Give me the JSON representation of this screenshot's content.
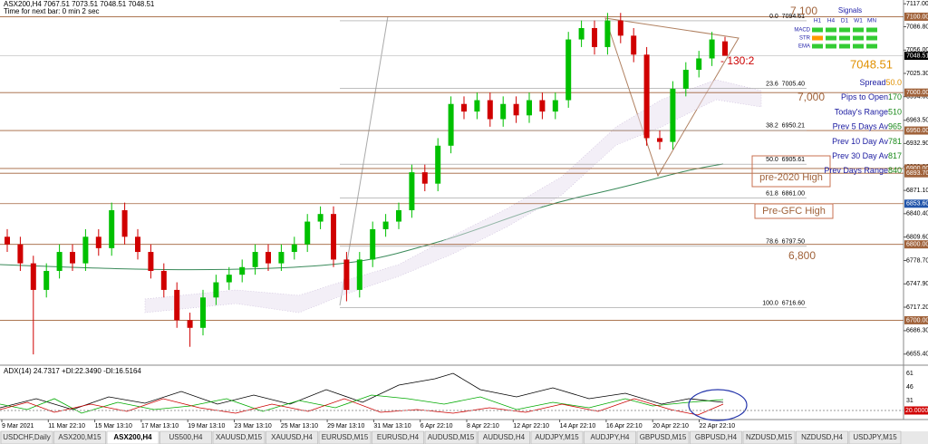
{
  "chart_data": {
    "type": "candlestick",
    "header": "ASX200,H4  7067.51 7073.51 7048.51 7048.51",
    "subheader": "Time for next bar: 0 min 2 sec",
    "ylim": [
      6642,
      7122
    ],
    "yticks": [
      {
        "value": 7117,
        "label": "7117.00"
      },
      {
        "value": 7086.8,
        "label": "7086.80"
      },
      {
        "value": 7056,
        "label": "7056.00"
      },
      {
        "value": 7025.3,
        "label": "7025.30"
      },
      {
        "value": 6994.6,
        "label": "6994.60"
      },
      {
        "value": 6963.5,
        "label": "6963.50"
      },
      {
        "value": 6932.9,
        "label": "6932.90"
      },
      {
        "value": 6902.2,
        "label": "6902.20"
      },
      {
        "value": 6871.1,
        "label": "6871.10"
      },
      {
        "value": 6840.4,
        "label": "6840.40"
      },
      {
        "value": 6809.6,
        "label": "6809.60"
      },
      {
        "value": 6778.7,
        "label": "6778.70"
      },
      {
        "value": 6747.9,
        "label": "6747.90"
      },
      {
        "value": 6717.2,
        "label": "6717.20"
      },
      {
        "value": 6686.3,
        "label": "6686.30"
      },
      {
        "value": 6655.4,
        "label": "6655.40"
      }
    ],
    "open": [
      6810,
      6800,
      6775,
      6740,
      6765,
      6790,
      6775,
      6810,
      6795,
      6845,
      6810,
      6790,
      6765,
      6740,
      6700,
      6690,
      6730,
      6750,
      6760,
      6770,
      6790,
      6775,
      6790,
      6800,
      6830,
      6840,
      6780,
      6740,
      6780,
      6820,
      6830,
      6845,
      6895,
      6880,
      6930,
      6985,
      6975,
      6990,
      6965,
      6985,
      6970,
      6990,
      6975,
      6990,
      7070,
      7085,
      7060,
      7095,
      7075,
      7050,
      6940,
      6935,
      7005,
      7030,
      7045,
      7067.51
    ],
    "high": [
      6820,
      6810,
      6785,
      6775,
      6800,
      6800,
      6820,
      6820,
      6855,
      6855,
      6820,
      6800,
      6775,
      6750,
      6710,
      6740,
      6760,
      6770,
      6780,
      6800,
      6800,
      6800,
      6810,
      6840,
      6850,
      6850,
      6790,
      6790,
      6830,
      6840,
      6855,
      6905,
      6905,
      6940,
      6995,
      6995,
      7000,
      7000,
      6995,
      6995,
      7000,
      7000,
      7000,
      7080,
      7095,
      7095,
      7105,
      7105,
      7085,
      7060,
      6950,
      7015,
      7040,
      7055,
      7080,
      7073.51
    ],
    "low": [
      6790,
      6765,
      6655,
      6730,
      6755,
      6765,
      6765,
      6785,
      6785,
      6800,
      6780,
      6755,
      6730,
      6690,
      6665,
      6680,
      6720,
      6740,
      6750,
      6760,
      6765,
      6765,
      6780,
      6790,
      6820,
      6770,
      6725,
      6730,
      6770,
      6810,
      6820,
      6835,
      6870,
      6870,
      6920,
      6965,
      6965,
      6955,
      6955,
      6960,
      6960,
      6965,
      6965,
      6980,
      7060,
      7050,
      7050,
      7065,
      7040,
      6930,
      6925,
      6925,
      6995,
      7020,
      7035,
      7048.51
    ],
    "close": [
      6800,
      6775,
      6740,
      6765,
      6790,
      6775,
      6810,
      6795,
      6845,
      6810,
      6790,
      6765,
      6740,
      6700,
      6690,
      6730,
      6750,
      6760,
      6770,
      6790,
      6775,
      6790,
      6800,
      6830,
      6840,
      6780,
      6740,
      6780,
      6820,
      6830,
      6845,
      6895,
      6880,
      6930,
      6985,
      6975,
      6990,
      6965,
      6985,
      6970,
      6990,
      6975,
      6990,
      7070,
      7085,
      7060,
      7095,
      7075,
      7050,
      6940,
      6935,
      7005,
      7030,
      7045,
      7070,
      7048.51
    ],
    "levels": [
      {
        "value": 7100,
        "label": "7100.00"
      },
      {
        "value": 7000,
        "label": "7000.00"
      },
      {
        "value": 6950,
        "label": "6950.00"
      },
      {
        "value": 6900,
        "label": "6900.00"
      },
      {
        "value": 6893.7,
        "label": "6893.70"
      },
      {
        "value": 6853.6,
        "label": "6853.60"
      },
      {
        "value": 6800,
        "label": "6800.00"
      },
      {
        "value": 6700,
        "label": "6700.00"
      }
    ],
    "current": {
      "value": 7048.51,
      "label": "7048.51"
    },
    "fib": [
      {
        "value": 7094.61,
        "label": "0.0  7094.61"
      },
      {
        "value": 7005.4,
        "label": "23.6  7005.40"
      },
      {
        "value": 6950.21,
        "label": "38.2  6950.21"
      },
      {
        "value": 6905.61,
        "label": "50.0  6905.61"
      },
      {
        "value": 6861,
        "label": "61.8  6861.00"
      },
      {
        "value": 6797.5,
        "label": "78.6  6797.50"
      },
      {
        "value": 6716.6,
        "label": "100.0  6716.60"
      }
    ],
    "annotations": [
      "7,100",
      "7048.51",
      "7,000",
      "6,800",
      "pre-2020 High",
      "Pre-GFC High",
      "- 130:2"
    ],
    "signals": {
      "title": "Signals",
      "columns": [
        "H1",
        "H4",
        "D1",
        "W1",
        "MN"
      ],
      "rows": [
        "MACD",
        "STR",
        "EMA"
      ]
    },
    "info": [
      [
        "Spread",
        "50.0"
      ],
      [
        "Pips to Open",
        "170"
      ],
      [
        "Today's Range",
        "510"
      ],
      [
        "Prev 5 Days Av",
        "965"
      ],
      [
        "Prev 10 Day Av",
        "781"
      ],
      [
        "Prev 30 Day Av",
        "817"
      ],
      [
        "Prev Days Range",
        "840"
      ]
    ],
    "adx": {
      "label": "ADX(14) 24.7317 +DI:22.3490 -DI:16.5164",
      "ticks": [
        "61",
        "46",
        "31"
      ],
      "level": "20.0000"
    },
    "x_labels": [
      "9 Mar 2021",
      "11 Mar 22:10",
      "15 Mar 13:10",
      "17 Mar 13:10",
      "19 Mar 13:10",
      "23 Mar 13:10",
      "25 Mar 13:10",
      "29 Mar 13:10",
      "31 Mar 13:10",
      "6 Apr 22:10",
      "8 Apr 22:10",
      "12 Apr 22:10",
      "14 Apr 22:10",
      "16 Apr 22:10",
      "20 Apr 22:10",
      "22 Apr 22:10"
    ],
    "tabs": [
      "USDCHF,Daily",
      "ASX200,M15",
      "ASX200,H4",
      "US500,H4",
      "XAUUSD,M15",
      "XAUUSD,H4",
      "EURUSD,M15",
      "EURUSD,H4",
      "AUDUSD,M15",
      "AUDUSD,H4",
      "AUDJPY,M15",
      "AUDJPY,H4",
      "GBPUSD,M15",
      "GBPUSD,H4",
      "NZDUSD,M15",
      "NZDUSD,H4",
      "USDJPY,M15"
    ],
    "active_tab": 2
  }
}
